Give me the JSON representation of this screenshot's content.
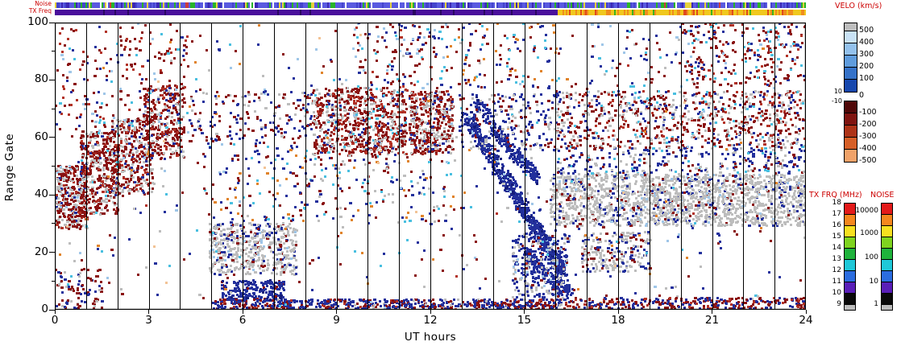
{
  "strips": {
    "noise_label": "Noise",
    "txfreq_label": "TX Freq",
    "noise_weights": {
      "#5a5ae0": 0.52,
      "#4444cc": 0.15,
      "#3c28b4": 0.08,
      "#28b428": 0.14,
      "#e6d23c": 0.05,
      "#ffffff": 0.04,
      "#cc3c3c": 0.02
    },
    "txfreq": {
      "solid": "#4a0f9c",
      "alt": "#2a0560",
      "switch_hour": 16.05,
      "weights": {
        "#f0c81e": 0.6,
        "#f08c1e": 0.3,
        "#e04a1e": 0.06,
        "#3cb41e": 0.04
      }
    }
  },
  "colorbars": {
    "velo": {
      "title": "VELO (km/s)",
      "right_labels": [
        "500",
        "400",
        "300",
        "200",
        "100",
        "0",
        "-100",
        "-200",
        "-300",
        "-400",
        "-500"
      ],
      "left_labels": [
        "10",
        "-10"
      ],
      "cells_top": [
        {
          "c": "#bdbdbd",
          "h": 10
        },
        {
          "c": "#c9e2f6",
          "h": 15
        },
        {
          "c": "#93c1ec",
          "h": 15
        },
        {
          "c": "#5f9cdd",
          "h": 15
        },
        {
          "c": "#3572c8",
          "h": 15
        },
        {
          "c": "#1747ad",
          "h": 15
        }
      ],
      "cells_bottom": [
        {
          "c": "#4f0808",
          "h": 15
        },
        {
          "c": "#7f1410",
          "h": 15
        },
        {
          "c": "#ad3317",
          "h": 15
        },
        {
          "c": "#d65f27",
          "h": 15
        },
        {
          "c": "#f0a269",
          "h": 15
        }
      ]
    },
    "txfrq": {
      "title": "TX FRQ (MHz)",
      "labels": [
        "18",
        "17",
        "16",
        "15",
        "14",
        "13",
        "12",
        "11",
        "10",
        "9"
      ],
      "colors": [
        "#e31a1a",
        "#f5871e",
        "#f7e020",
        "#7fd41f",
        "#1fb33c",
        "#1fc8d8",
        "#2b6de0",
        "#5a1fb8",
        "#0a0a0a"
      ],
      "gray": "#bdbdbd"
    },
    "noise": {
      "title": "NOISE",
      "labels": [
        "10000",
        "1000",
        "100",
        "10",
        "1"
      ],
      "colors": [
        "#e31a1a",
        "#f5871e",
        "#f7e020",
        "#7fd41f",
        "#1fb33c",
        "#1fc8d8",
        "#2b6de0",
        "#5a1fb8",
        "#0a0a0a"
      ],
      "gray": "#bdbdbd"
    }
  },
  "chart_data": {
    "type": "scatter",
    "xlabel": "UT hours",
    "ylabel": "Range Gate",
    "x_range": [
      0,
      24
    ],
    "y_range": [
      0,
      100
    ],
    "x_ticks": [
      "0",
      "3",
      "6",
      "9",
      "12",
      "15",
      "18",
      "21",
      "24"
    ],
    "y_ticks": [
      "0",
      "20",
      "40",
      "60",
      "80",
      "100"
    ],
    "hour_gridlines": true,
    "palette": {
      "dr": "#8a1212",
      "rd": "#b23226",
      "gy": "#bdbdbd",
      "nv": "#23309c",
      "db": "#141c7a",
      "lb": "#9fc6e8",
      "cy": "#49bfe0",
      "or": "#e0832a",
      "pc": "#f2c396"
    },
    "features": [
      {
        "x": [
          0,
          1.0
        ],
        "y": [
          28,
          50
        ],
        "n": 380,
        "w": {
          "dr": 0.5,
          "rd": 0.1,
          "gy": 0.3,
          "nv": 0.05,
          "lb": 0.05
        }
      },
      {
        "x": [
          0.8,
          2.0
        ],
        "y": [
          33,
          62
        ],
        "n": 420,
        "w": {
          "dr": 0.55,
          "rd": 0.12,
          "gy": 0.25,
          "nv": 0.04,
          "cy": 0.04
        }
      },
      {
        "x": [
          1.8,
          3.1
        ],
        "y": [
          40,
          66
        ],
        "n": 380,
        "w": {
          "dr": 0.5,
          "rd": 0.12,
          "gy": 0.3,
          "nv": 0.08
        }
      },
      {
        "x": [
          2.8,
          4.1
        ],
        "y": [
          52,
          78
        ],
        "n": 300,
        "w": {
          "dr": 0.55,
          "rd": 0.15,
          "gy": 0.22,
          "nv": 0.08
        }
      },
      {
        "x": [
          0,
          4.2
        ],
        "y": [
          62,
          100
        ],
        "n": 200,
        "w": {
          "dr": 0.5,
          "rd": 0.2,
          "nv": 0.1,
          "lb": 0.1,
          "cy": 0.1
        }
      },
      {
        "x": [
          0,
          1.5
        ],
        "y": [
          0,
          14
        ],
        "n": 90,
        "w": {
          "dr": 0.5,
          "nv": 0.3,
          "gy": 0.2
        }
      },
      {
        "x": [
          4.9,
          7.7
        ],
        "y": [
          12,
          30
        ],
        "n": 520,
        "w": {
          "gy": 0.72,
          "nv": 0.15,
          "dr": 0.08,
          "lb": 0.05
        }
      },
      {
        "x": [
          5.3,
          7.3
        ],
        "y": [
          3,
          10
        ],
        "n": 200,
        "w": {
          "nv": 0.8,
          "db": 0.1,
          "dr": 0.1
        }
      },
      {
        "x": [
          5,
          16.2
        ],
        "y": [
          0,
          3.5
        ],
        "n": 600,
        "w": {
          "nv": 0.55,
          "dr": 0.3,
          "rd": 0.1,
          "gy": 0.05
        }
      },
      {
        "x": [
          8.2,
          11.2
        ],
        "y": [
          54,
          77
        ],
        "n": 750,
        "w": {
          "dr": 0.45,
          "rd": 0.15,
          "gy": 0.3,
          "nv": 0.06,
          "cy": 0.04
        }
      },
      {
        "x": [
          11.3,
          12.7
        ],
        "y": [
          54,
          76
        ],
        "n": 420,
        "w": {
          "dr": 0.45,
          "rd": 0.15,
          "gy": 0.32,
          "nv": 0.08
        }
      },
      {
        "x": [
          7.8,
          12.8
        ],
        "y": [
          30,
          54
        ],
        "n": 160,
        "w": {
          "nv": 0.3,
          "dr": 0.3,
          "gy": 0.2,
          "cy": 0.1,
          "or": 0.1
        }
      },
      {
        "pts": [
          [
            13.15,
            67
          ],
          [
            13.7,
            57
          ],
          [
            14.2,
            48
          ],
          [
            14.7,
            40
          ],
          [
            15.1,
            32
          ],
          [
            15.5,
            25
          ],
          [
            15.9,
            18
          ],
          [
            16.2,
            13
          ]
        ],
        "n": 700,
        "thick": 5,
        "jx": 0.3,
        "w": {
          "nv": 0.75,
          "db": 0.2,
          "lb": 0.05
        }
      },
      {
        "pts": [
          [
            13.4,
            73
          ],
          [
            13.95,
            64
          ],
          [
            14.5,
            56
          ],
          [
            15.0,
            50
          ],
          [
            15.4,
            45
          ]
        ],
        "n": 220,
        "thick": 4,
        "jx": 0.25,
        "w": {
          "nv": 0.8,
          "db": 0.2
        }
      },
      {
        "pts": [
          [
            15.0,
            20
          ],
          [
            15.5,
            14
          ],
          [
            16.0,
            9
          ],
          [
            16.4,
            6
          ]
        ],
        "n": 150,
        "thick": 4,
        "jx": 0.25,
        "w": {
          "nv": 0.85,
          "db": 0.15
        }
      },
      {
        "x": [
          14.6,
          16.4
        ],
        "y": [
          4,
          26
        ],
        "n": 330,
        "w": {
          "nv": 0.6,
          "gy": 0.25,
          "dr": 0.1,
          "lb": 0.05
        }
      },
      {
        "x": [
          15.8,
          24
        ],
        "y": [
          29,
          47
        ],
        "n": 1700,
        "w": {
          "gy": 0.8,
          "nv": 0.12,
          "dr": 0.05,
          "lb": 0.03
        }
      },
      {
        "x": [
          16,
          24
        ],
        "y": [
          56,
          76
        ],
        "n": 800,
        "w": {
          "dr": 0.42,
          "rd": 0.14,
          "gy": 0.26,
          "nv": 0.12,
          "cy": 0.06
        }
      },
      {
        "x": [
          16,
          24
        ],
        "y": [
          47,
          56
        ],
        "n": 260,
        "w": {
          "nv": 0.5,
          "gy": 0.25,
          "dr": 0.15,
          "cy": 0.1
        }
      },
      {
        "x": [
          16.8,
          19
        ],
        "y": [
          13,
          27
        ],
        "n": 220,
        "w": {
          "gy": 0.55,
          "nv": 0.3,
          "dr": 0.15
        }
      },
      {
        "x": [
          0,
          24
        ],
        "y": [
          0,
          100
        ],
        "n": 650,
        "w": {
          "dr": 0.25,
          "nv": 0.25,
          "gy": 0.12,
          "lb": 0.1,
          "cy": 0.1,
          "or": 0.09,
          "rd": 0.05,
          "pc": 0.04
        }
      },
      {
        "x": [
          4.2,
          8.2
        ],
        "y": [
          58,
          76
        ],
        "n": 170,
        "w": {
          "nv": 0.4,
          "dr": 0.4,
          "gy": 0.2
        }
      },
      {
        "x": [
          20,
          24
        ],
        "y": [
          78,
          100
        ],
        "n": 170,
        "w": {
          "dr": 0.5,
          "rd": 0.2,
          "nv": 0.15,
          "cy": 0.15
        }
      },
      {
        "x": [
          16.2,
          24
        ],
        "y": [
          0,
          4
        ],
        "n": 300,
        "w": {
          "dr": 0.45,
          "nv": 0.35,
          "rd": 0.2
        }
      },
      {
        "x": [
          12.9,
          16.2
        ],
        "y": [
          55,
          75
        ],
        "n": 220,
        "w": {
          "nv": 0.5,
          "dr": 0.25,
          "gy": 0.25
        }
      },
      {
        "x": [
          9.5,
          12.5
        ],
        "y": [
          77,
          100
        ],
        "n": 120,
        "w": {
          "dr": 0.4,
          "nv": 0.2,
          "lb": 0.15,
          "cy": 0.15,
          "rd": 0.1
        }
      },
      {
        "x": [
          4.5,
          8
        ],
        "y": [
          30,
          58
        ],
        "n": 100,
        "w": {
          "dr": 0.35,
          "nv": 0.35,
          "cy": 0.15,
          "or": 0.15
        }
      },
      {
        "x": [
          17,
          24
        ],
        "y": [
          77,
          100
        ],
        "n": 140,
        "w": {
          "dr": 0.45,
          "nv": 0.25,
          "cy": 0.15,
          "lb": 0.15
        }
      },
      {
        "x": [
          12.5,
          16
        ],
        "y": [
          77,
          100
        ],
        "n": 100,
        "w": {
          "dr": 0.4,
          "nv": 0.3,
          "cy": 0.15,
          "or": 0.15
        }
      }
    ]
  }
}
